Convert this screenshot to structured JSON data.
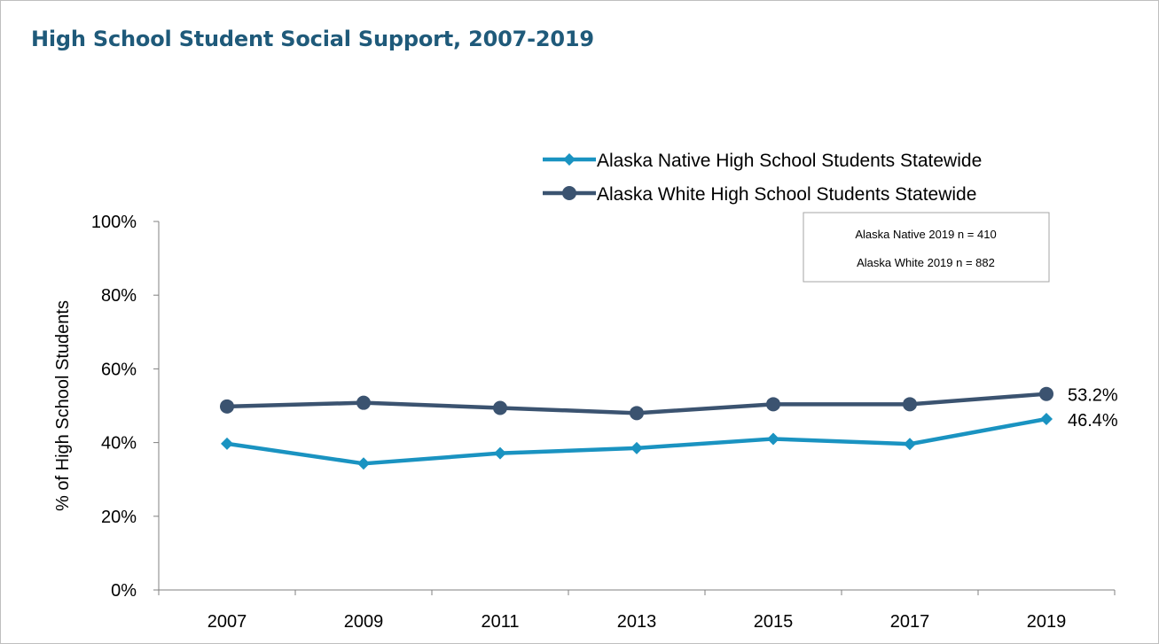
{
  "title": "High School Student Social Support, 2007-2019",
  "note": {
    "lines": [
      "Alaska Native 2019 n = 410",
      "Alaska White 2019 n = 882"
    ]
  },
  "chart_data": {
    "type": "line",
    "title": "High School Student Social Support, 2007-2019",
    "xlabel": "",
    "ylabel": "% of High School Students",
    "categories": [
      "2007",
      "2009",
      "2011",
      "2013",
      "2015",
      "2017",
      "2019"
    ],
    "ylim": [
      0,
      100
    ],
    "yticks": [
      "0%",
      "20%",
      "40%",
      "60%",
      "80%",
      "100%"
    ],
    "grid": false,
    "legend_position": "top-right",
    "series": [
      {
        "name": "Alaska Native High School Students Statewide",
        "values": [
          39.7,
          34.3,
          37.1,
          38.5,
          41.0,
          39.6,
          46.4
        ],
        "color": "#1a93c1",
        "marker": "diamond",
        "end_label": "46.4%"
      },
      {
        "name": "Alaska White High School Students Statewide",
        "values": [
          49.8,
          50.8,
          49.4,
          48.0,
          50.4,
          50.4,
          53.2
        ],
        "color": "#3b5370",
        "marker": "circle",
        "end_label": "53.2%"
      }
    ]
  }
}
